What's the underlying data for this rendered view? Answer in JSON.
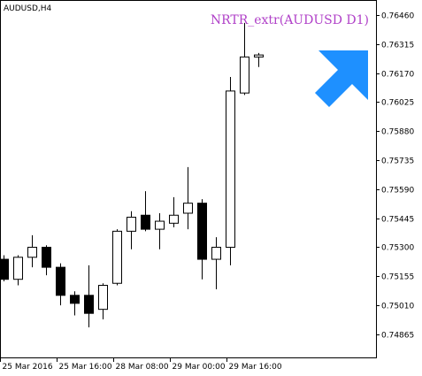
{
  "chart_data": {
    "type": "candlestick",
    "symbol_label": "AUDUSD,H4",
    "indicator_label": "NRTR_extr(AUDUSD D1)",
    "colors": {
      "background": "#ffffff",
      "axis": "#000000",
      "bull_body": "#ffffff",
      "bear_body": "#000000",
      "wick": "#000000",
      "indicator_text": "#b040c8",
      "arrow": "#1e90ff"
    },
    "signal_arrow": "up-right-arrow-icon",
    "ylim": [
      0.7475,
      0.7653
    ],
    "y_ticks": [
      0.7646,
      0.76315,
      0.7617,
      0.76025,
      0.7588,
      0.75735,
      0.7559,
      0.75445,
      0.753,
      0.75155,
      0.7501,
      0.74865
    ],
    "y_tick_labels": [
      "0.76460",
      "0.76315",
      "0.76170",
      "0.76025",
      "0.75880",
      "0.75735",
      "0.75590",
      "0.75445",
      "0.75300",
      "0.75155",
      "0.75010",
      "0.74865"
    ],
    "x_labels": [
      {
        "index": 0,
        "label": "25 Mar 2016"
      },
      {
        "index": 4,
        "label": "25 Mar 16:00"
      },
      {
        "index": 8,
        "label": "28 Mar 08:00"
      },
      {
        "index": 12,
        "label": "29 Mar 00:00"
      },
      {
        "index": 16,
        "label": "29 Mar 16:00"
      }
    ],
    "candles": [
      {
        "o": 0.7524,
        "h": 0.7526,
        "l": 0.7513,
        "c": 0.7514
      },
      {
        "o": 0.7514,
        "h": 0.7526,
        "l": 0.7511,
        "c": 0.7525
      },
      {
        "o": 0.7525,
        "h": 0.7536,
        "l": 0.752,
        "c": 0.753
      },
      {
        "o": 0.753,
        "h": 0.7531,
        "l": 0.7516,
        "c": 0.752
      },
      {
        "o": 0.752,
        "h": 0.7522,
        "l": 0.7501,
        "c": 0.7506
      },
      {
        "o": 0.7506,
        "h": 0.7508,
        "l": 0.7496,
        "c": 0.7502
      },
      {
        "o": 0.7506,
        "h": 0.7521,
        "l": 0.749,
        "c": 0.7497
      },
      {
        "o": 0.7499,
        "h": 0.7512,
        "l": 0.7494,
        "c": 0.7511
      },
      {
        "o": 0.7512,
        "h": 0.7539,
        "l": 0.7511,
        "c": 0.7538
      },
      {
        "o": 0.7538,
        "h": 0.7548,
        "l": 0.7529,
        "c": 0.7545
      },
      {
        "o": 0.7546,
        "h": 0.7558,
        "l": 0.7538,
        "c": 0.7539
      },
      {
        "o": 0.7539,
        "h": 0.7547,
        "l": 0.7529,
        "c": 0.7543
      },
      {
        "o": 0.7542,
        "h": 0.7555,
        "l": 0.754,
        "c": 0.7546
      },
      {
        "o": 0.7547,
        "h": 0.757,
        "l": 0.7539,
        "c": 0.7552
      },
      {
        "o": 0.7552,
        "h": 0.7554,
        "l": 0.7514,
        "c": 0.7524
      },
      {
        "o": 0.7524,
        "h": 0.7535,
        "l": 0.7509,
        "c": 0.753
      },
      {
        "o": 0.753,
        "h": 0.7615,
        "l": 0.7521,
        "c": 0.7608
      },
      {
        "o": 0.7607,
        "h": 0.7642,
        "l": 0.7606,
        "c": 0.7625
      },
      {
        "o": 0.7625,
        "h": 0.7627,
        "l": 0.762,
        "c": 0.7626
      }
    ]
  }
}
